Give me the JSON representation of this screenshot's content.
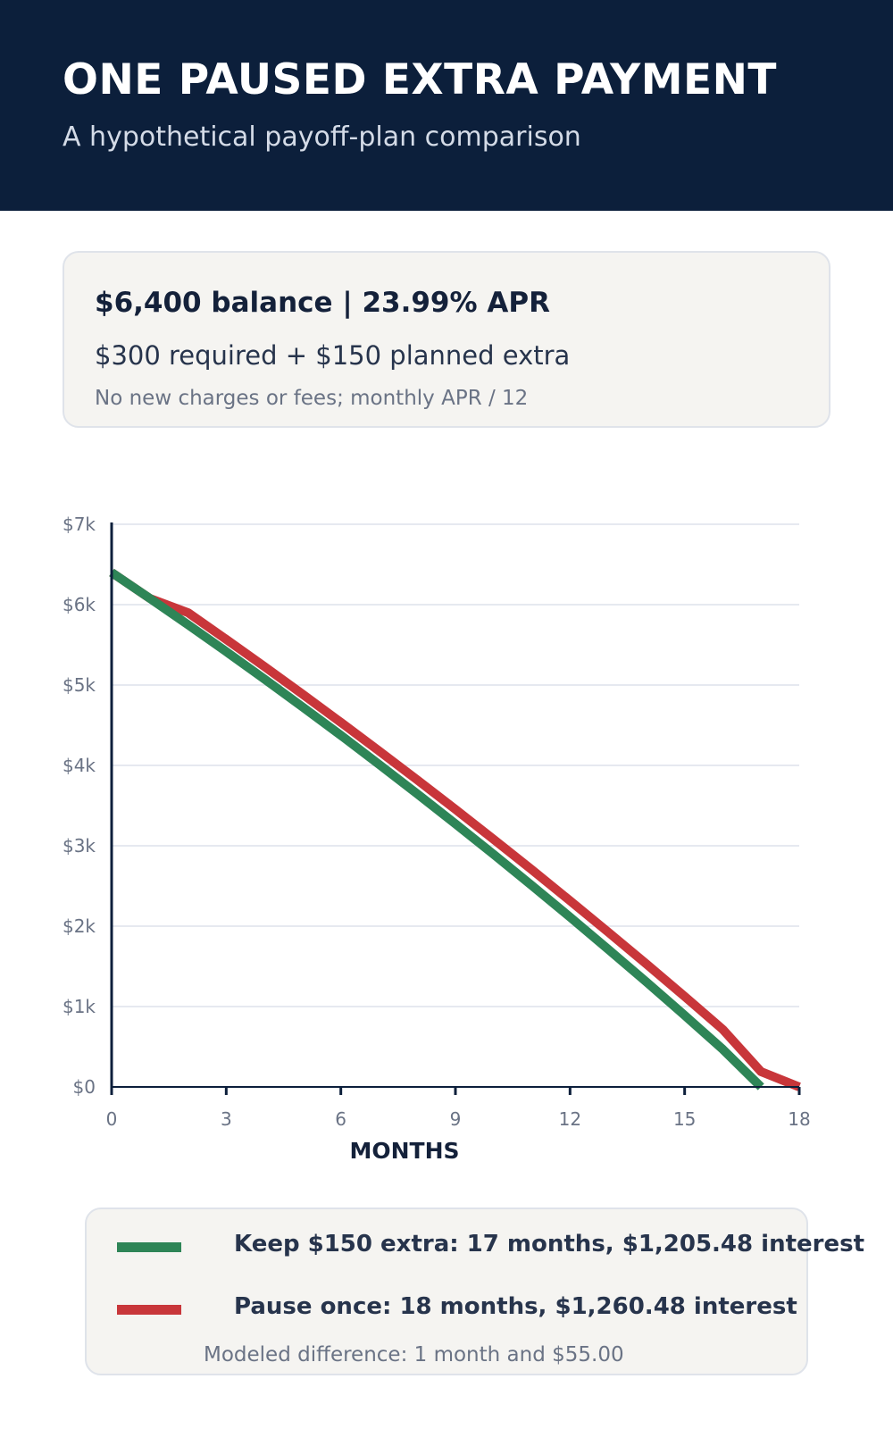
{
  "header": {
    "title": "ONE PAUSED EXTRA PAYMENT",
    "subtitle": "A hypothetical payoff-plan comparison"
  },
  "info": {
    "line1": "$6,400 balance  |  23.99% APR",
    "line2": "$300 required + $150 planned extra",
    "line3": "No new charges or fees; monthly APR / 12"
  },
  "chart_data": {
    "type": "line",
    "xlabel": "MONTHS",
    "ylabel": "",
    "xlim": [
      0,
      18
    ],
    "ylim": [
      0,
      7000
    ],
    "x_ticks": [
      0,
      3,
      6,
      9,
      12,
      15,
      18
    ],
    "x_tick_labels": [
      "0",
      "3",
      "6",
      "9",
      "12",
      "15",
      "18"
    ],
    "y_ticks": [
      0,
      1000,
      2000,
      3000,
      4000,
      5000,
      6000,
      7000
    ],
    "y_tick_labels": [
      "$0",
      "$1k",
      "$2k",
      "$3k",
      "$4k",
      "$5k",
      "$6k",
      "$7k"
    ],
    "grid": true,
    "series": [
      {
        "name": "Pause once",
        "color": "#c8363a",
        "x": [
          0,
          1,
          2,
          3,
          4,
          5,
          6,
          7,
          8,
          9,
          10,
          11,
          12,
          13,
          14,
          15,
          16,
          17,
          18
        ],
        "y": [
          6400,
          6078,
          5900,
          5568,
          5230,
          4886,
          4536,
          4181,
          3820,
          3453,
          3080,
          2702,
          2317,
          1926,
          1529,
          1126,
          716,
          190,
          0
        ]
      },
      {
        "name": "Keep $150 extra",
        "color": "#2e8557",
        "x": [
          0,
          1,
          2,
          3,
          4,
          5,
          6,
          7,
          8,
          9,
          10,
          11,
          12,
          13,
          14,
          15,
          16,
          17
        ],
        "y": [
          6400,
          6078,
          5750,
          5416,
          5075,
          4727,
          4374,
          4013,
          3647,
          3273,
          2893,
          2506,
          2113,
          1712,
          1305,
          890,
          468,
          0
        ]
      }
    ]
  },
  "legend": {
    "keep_color": "#2e8557",
    "keep_label": "Keep $150 extra: 17 months, $1,205.48 interest",
    "pause_color": "#c8363a",
    "pause_label": "Pause once: 18 months, $1,260.48 interest",
    "note": "Modeled difference: 1 month and $55.00"
  }
}
